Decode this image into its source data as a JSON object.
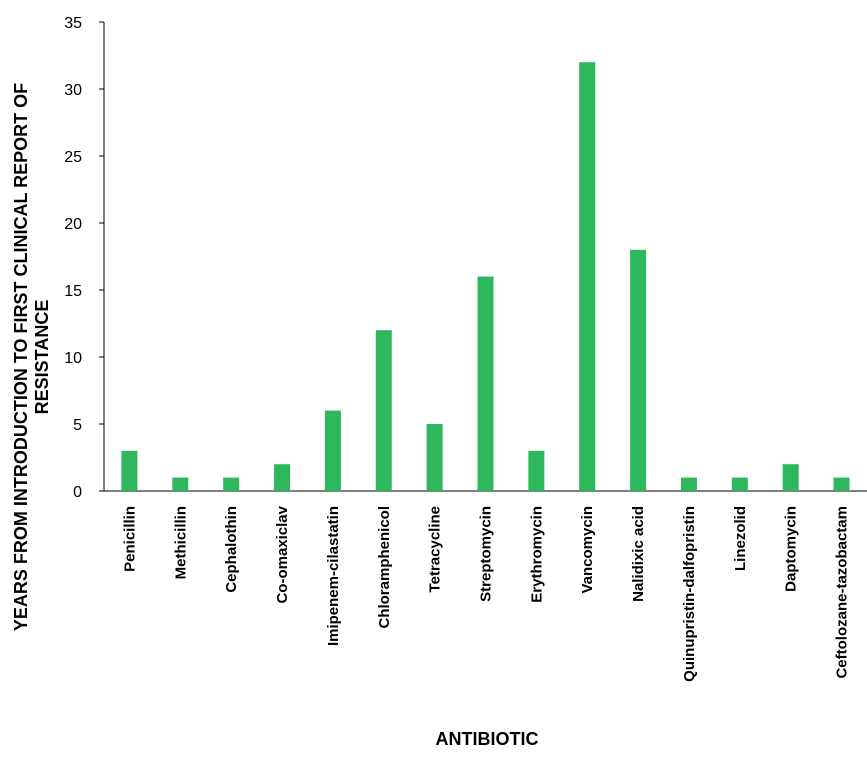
{
  "chart_data": {
    "type": "bar",
    "xlabel": "ANTIBIOTIC",
    "ylabel_lines": [
      "YEARS FROM INTRODUCTION TO FIRST CLINICAL REPORT OF",
      "RESISTANCE"
    ],
    "ylim": [
      0,
      35
    ],
    "yticks": [
      0,
      5,
      10,
      15,
      20,
      25,
      30,
      35
    ],
    "grid": false,
    "legend": "none",
    "bar_color": "#2db85c",
    "categories": [
      "Penicillin",
      "Methicillin",
      "Cephalothin",
      "Co-omaxiclav",
      "Imipenem-cilastatin",
      "Chloramphenicol",
      "Tetracycline",
      "Streptomycin",
      "Erythromycin",
      "Vancomycin",
      "Nalidixic acid",
      "Quinupristin-dalfopristin",
      "Linezolid",
      "Daptomycin",
      "Ceftolozane-tazobactam"
    ],
    "values": [
      3,
      1,
      1,
      2,
      6,
      12,
      5,
      16,
      3,
      32,
      18,
      1,
      1,
      2,
      1
    ]
  }
}
